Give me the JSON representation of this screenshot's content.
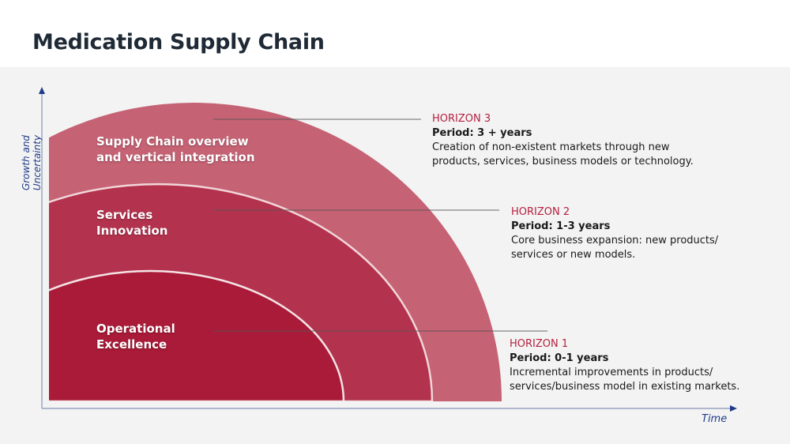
{
  "title": "Medication Supply Chain",
  "axes": {
    "y_label": "Growth and Uncertainty",
    "x_label": "Time"
  },
  "bands": [
    {
      "label": "Supply Chain overview\nand vertical integration",
      "color": "#c56274"
    },
    {
      "label": "Services\nInnovation",
      "color": "#b3334e"
    },
    {
      "label": "Operational\nExcellence",
      "color": "#a91b38"
    }
  ],
  "horizons": [
    {
      "name": "HORIZON 3",
      "period": "Period: 3 + years",
      "description": "Creation of non-existent markets through new products, services, business models or technology."
    },
    {
      "name": "HORIZON 2",
      "period": "Period: 1-3 years",
      "description": "Core business expansion: new products/ services or new models."
    },
    {
      "name": "HORIZON 1",
      "period": "Period: 0-1 years",
      "description": "Incremental improvements in products/ services/business model in existing markets."
    }
  ]
}
